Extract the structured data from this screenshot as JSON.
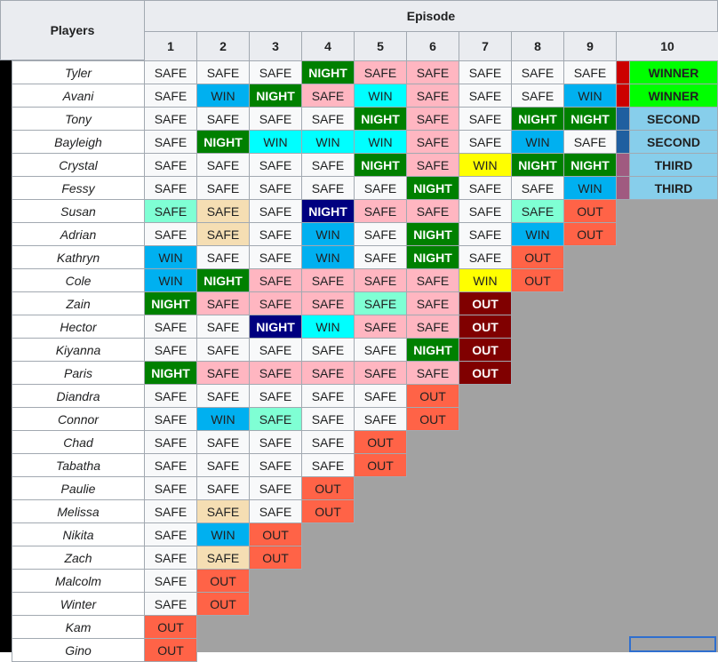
{
  "headers": {
    "players": "Players",
    "episode": "Episode",
    "episodes": [
      "1",
      "2",
      "3",
      "4",
      "5",
      "6",
      "7",
      "8",
      "9",
      "10"
    ]
  },
  "colors": {
    "SAFE": "#f8f9fa",
    "WIN_blue": "#00b0f0",
    "WIN_cyan": "#00ffff",
    "WIN_yellow": "#ffff00",
    "NIGHT_green": "#008000",
    "NIGHT_navy": "#000080",
    "pink": "#ffb6c1",
    "tan": "#f5deb3",
    "mint": "#7fffd4",
    "OUT_red": "#ff6347",
    "OUT_dark": "#800000",
    "WINNER": "#00ff00",
    "PLACE": "#87ceeb",
    "strip_winner": "#cc0000",
    "strip_second": "#1f5fa0",
    "strip_third": "#a05a80"
  },
  "rows": [
    {
      "name": "Tyler",
      "cells": [
        [
          "SAFE",
          "s"
        ],
        [
          "SAFE",
          "s"
        ],
        [
          "SAFE",
          "s"
        ],
        [
          "NIGHT",
          "g"
        ],
        [
          "SAFE",
          "p"
        ],
        [
          "SAFE",
          "p"
        ],
        [
          "SAFE",
          "s"
        ],
        [
          "SAFE",
          "s"
        ],
        [
          "SAFE",
          "s"
        ]
      ],
      "final": "WINNER",
      "strip": "r"
    },
    {
      "name": "Avani",
      "cells": [
        [
          "SAFE",
          "s"
        ],
        [
          "WIN",
          "b"
        ],
        [
          "NIGHT",
          "g"
        ],
        [
          "SAFE",
          "p"
        ],
        [
          "WIN",
          "c"
        ],
        [
          "SAFE",
          "p"
        ],
        [
          "SAFE",
          "s"
        ],
        [
          "SAFE",
          "s"
        ],
        [
          "WIN",
          "b"
        ]
      ],
      "final": "WINNER",
      "strip": "r"
    },
    {
      "name": "Tony",
      "cells": [
        [
          "SAFE",
          "s"
        ],
        [
          "SAFE",
          "s"
        ],
        [
          "SAFE",
          "s"
        ],
        [
          "SAFE",
          "s"
        ],
        [
          "NIGHT",
          "g"
        ],
        [
          "SAFE",
          "p"
        ],
        [
          "SAFE",
          "s"
        ],
        [
          "NIGHT",
          "g"
        ],
        [
          "NIGHT",
          "g"
        ]
      ],
      "final": "SECOND",
      "strip": "n"
    },
    {
      "name": "Bayleigh",
      "cells": [
        [
          "SAFE",
          "s"
        ],
        [
          "NIGHT",
          "g"
        ],
        [
          "WIN",
          "c"
        ],
        [
          "WIN",
          "c"
        ],
        [
          "WIN",
          "c"
        ],
        [
          "SAFE",
          "p"
        ],
        [
          "SAFE",
          "s"
        ],
        [
          "WIN",
          "b"
        ],
        [
          "SAFE",
          "s"
        ]
      ],
      "final": "SECOND",
      "strip": "n"
    },
    {
      "name": "Crystal",
      "cells": [
        [
          "SAFE",
          "s"
        ],
        [
          "SAFE",
          "s"
        ],
        [
          "SAFE",
          "s"
        ],
        [
          "SAFE",
          "s"
        ],
        [
          "NIGHT",
          "g"
        ],
        [
          "SAFE",
          "p"
        ],
        [
          "WIN",
          "y"
        ],
        [
          "NIGHT",
          "g"
        ],
        [
          "NIGHT",
          "g"
        ]
      ],
      "final": "THIRD",
      "strip": "m"
    },
    {
      "name": "Fessy",
      "cells": [
        [
          "SAFE",
          "s"
        ],
        [
          "SAFE",
          "s"
        ],
        [
          "SAFE",
          "s"
        ],
        [
          "SAFE",
          "s"
        ],
        [
          "SAFE",
          "s"
        ],
        [
          "NIGHT",
          "g"
        ],
        [
          "SAFE",
          "s"
        ],
        [
          "SAFE",
          "s"
        ],
        [
          "WIN",
          "b"
        ]
      ],
      "final": "THIRD",
      "strip": "m"
    },
    {
      "name": "Susan",
      "cells": [
        [
          "SAFE",
          "a"
        ],
        [
          "SAFE",
          "t"
        ],
        [
          "SAFE",
          "s"
        ],
        [
          "NIGHT",
          "v"
        ],
        [
          "SAFE",
          "p"
        ],
        [
          "SAFE",
          "p"
        ],
        [
          "SAFE",
          "s"
        ],
        [
          "SAFE",
          "a"
        ],
        [
          "OUT",
          "o"
        ]
      ]
    },
    {
      "name": "Adrian",
      "cells": [
        [
          "SAFE",
          "s"
        ],
        [
          "SAFE",
          "t"
        ],
        [
          "SAFE",
          "s"
        ],
        [
          "WIN",
          "b"
        ],
        [
          "SAFE",
          "s"
        ],
        [
          "NIGHT",
          "g"
        ],
        [
          "SAFE",
          "s"
        ],
        [
          "WIN",
          "b"
        ],
        [
          "OUT",
          "o"
        ]
      ]
    },
    {
      "name": "Kathryn",
      "cells": [
        [
          "WIN",
          "b"
        ],
        [
          "SAFE",
          "s"
        ],
        [
          "SAFE",
          "s"
        ],
        [
          "WIN",
          "b"
        ],
        [
          "SAFE",
          "s"
        ],
        [
          "NIGHT",
          "g"
        ],
        [
          "SAFE",
          "s"
        ],
        [
          "OUT",
          "o"
        ]
      ]
    },
    {
      "name": "Cole",
      "cells": [
        [
          "WIN",
          "b"
        ],
        [
          "NIGHT",
          "g"
        ],
        [
          "SAFE",
          "p"
        ],
        [
          "SAFE",
          "p"
        ],
        [
          "SAFE",
          "p"
        ],
        [
          "SAFE",
          "p"
        ],
        [
          "WIN",
          "y"
        ],
        [
          "OUT",
          "o"
        ]
      ]
    },
    {
      "name": "Zain",
      "cells": [
        [
          "NIGHT",
          "g"
        ],
        [
          "SAFE",
          "p"
        ],
        [
          "SAFE",
          "p"
        ],
        [
          "SAFE",
          "p"
        ],
        [
          "SAFE",
          "a"
        ],
        [
          "SAFE",
          "p"
        ],
        [
          "OUT",
          "d"
        ]
      ]
    },
    {
      "name": "Hector",
      "cells": [
        [
          "SAFE",
          "s"
        ],
        [
          "SAFE",
          "s"
        ],
        [
          "NIGHT",
          "v"
        ],
        [
          "WIN",
          "c"
        ],
        [
          "SAFE",
          "p"
        ],
        [
          "SAFE",
          "p"
        ],
        [
          "OUT",
          "d"
        ]
      ]
    },
    {
      "name": "Kiyanna",
      "cells": [
        [
          "SAFE",
          "s"
        ],
        [
          "SAFE",
          "s"
        ],
        [
          "SAFE",
          "s"
        ],
        [
          "SAFE",
          "s"
        ],
        [
          "SAFE",
          "s"
        ],
        [
          "NIGHT",
          "g"
        ],
        [
          "OUT",
          "d"
        ]
      ]
    },
    {
      "name": "Paris",
      "cells": [
        [
          "NIGHT",
          "g"
        ],
        [
          "SAFE",
          "p"
        ],
        [
          "SAFE",
          "p"
        ],
        [
          "SAFE",
          "p"
        ],
        [
          "SAFE",
          "p"
        ],
        [
          "SAFE",
          "p"
        ],
        [
          "OUT",
          "d"
        ]
      ]
    },
    {
      "name": "Diandra",
      "cells": [
        [
          "SAFE",
          "s"
        ],
        [
          "SAFE",
          "s"
        ],
        [
          "SAFE",
          "s"
        ],
        [
          "SAFE",
          "s"
        ],
        [
          "SAFE",
          "s"
        ],
        [
          "OUT",
          "o"
        ]
      ]
    },
    {
      "name": "Connor",
      "cells": [
        [
          "SAFE",
          "s"
        ],
        [
          "WIN",
          "b"
        ],
        [
          "SAFE",
          "a"
        ],
        [
          "SAFE",
          "s"
        ],
        [
          "SAFE",
          "s"
        ],
        [
          "OUT",
          "o"
        ]
      ]
    },
    {
      "name": "Chad",
      "cells": [
        [
          "SAFE",
          "s"
        ],
        [
          "SAFE",
          "s"
        ],
        [
          "SAFE",
          "s"
        ],
        [
          "SAFE",
          "s"
        ],
        [
          "OUT",
          "o"
        ]
      ]
    },
    {
      "name": "Tabatha",
      "cells": [
        [
          "SAFE",
          "s"
        ],
        [
          "SAFE",
          "s"
        ],
        [
          "SAFE",
          "s"
        ],
        [
          "SAFE",
          "s"
        ],
        [
          "OUT",
          "o"
        ]
      ]
    },
    {
      "name": "Paulie",
      "cells": [
        [
          "SAFE",
          "s"
        ],
        [
          "SAFE",
          "s"
        ],
        [
          "SAFE",
          "s"
        ],
        [
          "OUT",
          "o"
        ]
      ]
    },
    {
      "name": "Melissa",
      "cells": [
        [
          "SAFE",
          "s"
        ],
        [
          "SAFE",
          "t"
        ],
        [
          "SAFE",
          "s"
        ],
        [
          "OUT",
          "o"
        ]
      ]
    },
    {
      "name": "Nikita",
      "cells": [
        [
          "SAFE",
          "s"
        ],
        [
          "WIN",
          "b"
        ],
        [
          "OUT",
          "o"
        ]
      ]
    },
    {
      "name": "Zach",
      "cells": [
        [
          "SAFE",
          "s"
        ],
        [
          "SAFE",
          "t"
        ],
        [
          "OUT",
          "o"
        ]
      ]
    },
    {
      "name": "Malcolm",
      "cells": [
        [
          "SAFE",
          "s"
        ],
        [
          "OUT",
          "o"
        ]
      ]
    },
    {
      "name": "Winter",
      "cells": [
        [
          "SAFE",
          "s"
        ],
        [
          "OUT",
          "o"
        ]
      ]
    },
    {
      "name": "Kam",
      "cells": [
        [
          "OUT",
          "o"
        ]
      ]
    },
    {
      "name": "Gino",
      "cells": [
        [
          "OUT",
          "o"
        ]
      ]
    }
  ]
}
